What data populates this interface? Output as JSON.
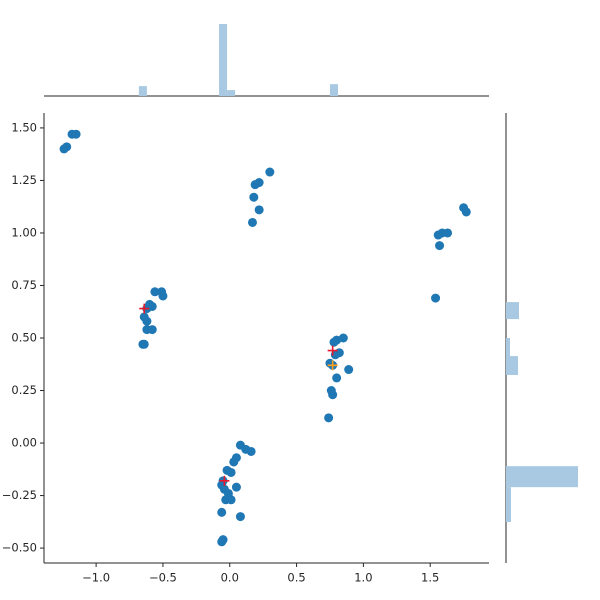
{
  "chart_data": {
    "type": "scatter",
    "xlim": [
      -1.39,
      1.94
    ],
    "ylim": [
      -0.571,
      1.571
    ],
    "xticks": [
      {
        "value": -1,
        "label": "−1.0"
      },
      {
        "value": -0.5,
        "label": "−0.5"
      },
      {
        "value": 0,
        "label": "0.0"
      },
      {
        "value": 0.5,
        "label": "0.5"
      },
      {
        "value": 1,
        "label": "1.0"
      },
      {
        "value": 1.5,
        "label": "1.5"
      }
    ],
    "yticks": [
      {
        "value": -0.5,
        "label": "−0.50"
      },
      {
        "value": -0.25,
        "label": "−0.25"
      },
      {
        "value": 0,
        "label": "0.00"
      },
      {
        "value": 0.25,
        "label": "0.25"
      },
      {
        "value": 0.5,
        "label": "0.50"
      },
      {
        "value": 0.75,
        "label": "0.75"
      },
      {
        "value": 1,
        "label": "1.00"
      },
      {
        "value": 1.25,
        "label": "1.25"
      },
      {
        "value": 1.5,
        "label": "1.50"
      }
    ],
    "series": [
      {
        "color": "#1f77b4",
        "marker": "o",
        "x": [
          -1.22,
          -1.24,
          -1.18,
          -1.15,
          0.3,
          0.22,
          0.19,
          0.18,
          0.22,
          0.17,
          1.75,
          1.77,
          1.63,
          1.59,
          1.56,
          1.57,
          1.54,
          -0.56,
          -0.51,
          -0.5,
          -0.6,
          -0.58,
          -0.62,
          -0.64,
          -0.62,
          -0.62,
          -0.58,
          -0.65,
          -0.64,
          0.85,
          0.8,
          0.78,
          0.82,
          0.79,
          0.75,
          0.77,
          0.89,
          0.8,
          0.76,
          0.77,
          0.74,
          0.08,
          0.12,
          0.16,
          0.05,
          0.03,
          -0.02,
          0.01,
          -0.05,
          -0.06,
          0.05,
          -0.04,
          -0.01,
          -0.03,
          0.01,
          -0.06,
          0.08,
          -0.05,
          -0.06
        ],
        "y": [
          1.41,
          1.4,
          1.47,
          1.47,
          1.29,
          1.24,
          1.23,
          1.17,
          1.11,
          1.05,
          1.12,
          1.1,
          1.0,
          1.0,
          0.99,
          0.94,
          0.69,
          0.72,
          0.72,
          0.7,
          0.66,
          0.65,
          0.64,
          0.6,
          0.58,
          0.54,
          0.54,
          0.47,
          0.47,
          0.5,
          0.49,
          0.48,
          0.43,
          0.42,
          0.38,
          0.37,
          0.35,
          0.31,
          0.25,
          0.23,
          0.12,
          -0.01,
          -0.03,
          -0.04,
          -0.07,
          -0.09,
          -0.13,
          -0.14,
          -0.18,
          -0.2,
          -0.21,
          -0.22,
          -0.24,
          -0.27,
          -0.27,
          -0.33,
          -0.35,
          -0.46,
          -0.47
        ]
      },
      {
        "color": "#e8192c",
        "marker": "+",
        "x": [
          -0.64,
          0.77,
          -0.04
        ],
        "y": [
          0.64,
          0.44,
          -0.18
        ]
      },
      {
        "color": "#ff9f1c",
        "marker": "+",
        "x": [
          0.77
        ],
        "y": [
          0.37
        ]
      }
    ],
    "top_hist": {
      "color": "#a8c9e1",
      "bins": [
        -0.68,
        -0.62,
        -0.08,
        -0.02,
        0.04,
        0.75,
        0.81
      ],
      "counts": [
        10,
        0,
        73,
        6,
        0,
        12
      ],
      "ylim": [
        0,
        75
      ]
    },
    "right_hist": {
      "color": "#a8c9e1",
      "bins": [
        -0.376,
        -0.295,
        -0.21,
        -0.11,
        0.324,
        0.414,
        0.5,
        0.59,
        0.671
      ],
      "counts": [
        5,
        5,
        72,
        0,
        12,
        4,
        0,
        13
      ],
      "xlim": [
        0,
        75
      ]
    }
  }
}
